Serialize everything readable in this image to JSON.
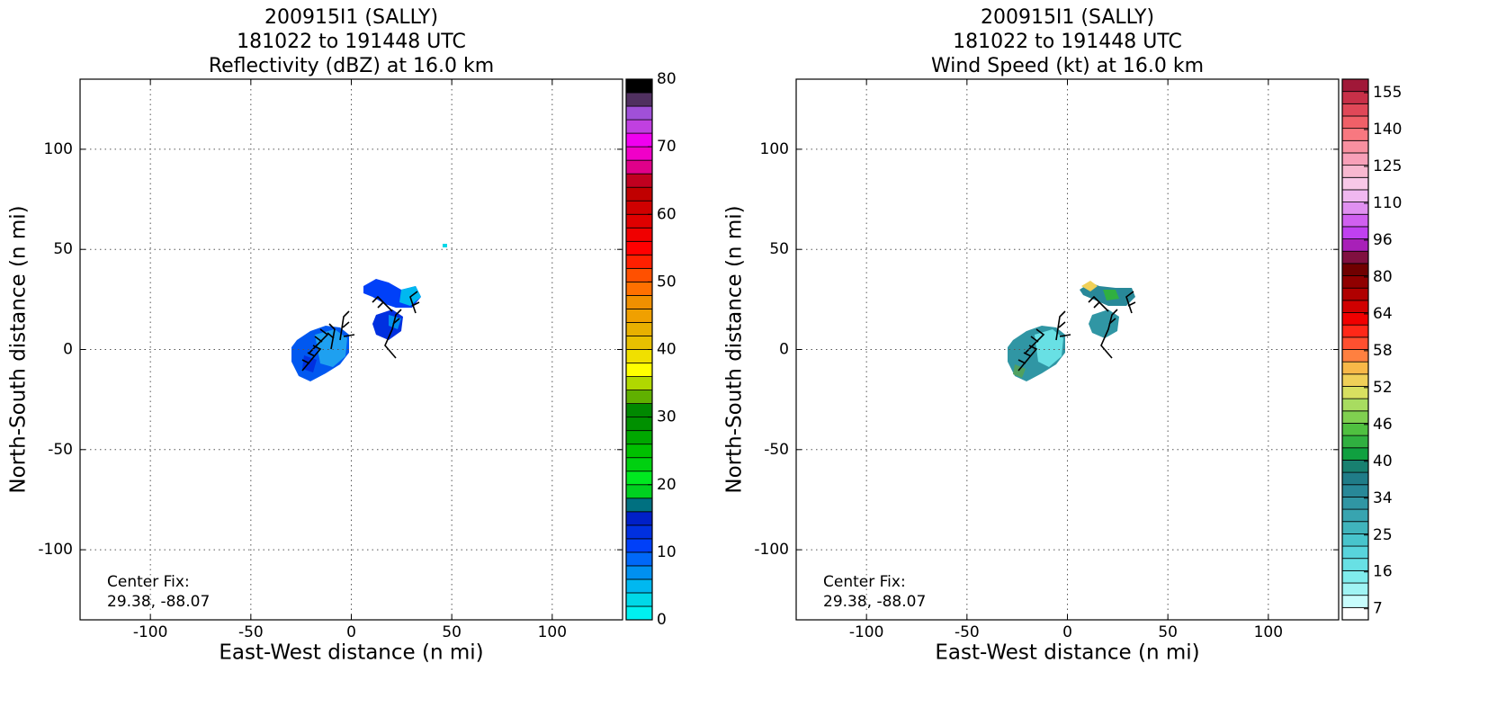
{
  "charts": [
    {
      "chart_data": {
        "type": "radar-field",
        "title": [
          "200915I1 (SALLY)",
          "181022 to 191448 UTC",
          "Reflectivity (dBZ) at 16.0 km"
        ],
        "x_label": "East-West distance (n mi)",
        "y_label": "North-South distance (n mi)",
        "xlim": [
          -135,
          135
        ],
        "ylim": [
          -135,
          135
        ],
        "xticks": [
          -100,
          -50,
          0,
          50,
          100
        ],
        "yticks": [
          -100,
          -50,
          0,
          50,
          100
        ],
        "grid": true,
        "annotation": [
          "Center Fix:",
          "29.38, -88.07"
        ],
        "colorbar": {
          "scale": "linear",
          "clim": [
            0,
            80
          ],
          "ticks": [
            0,
            10,
            20,
            30,
            40,
            50,
            60,
            70,
            80
          ],
          "colors": [
            "#00f0f0",
            "#00d8e8",
            "#00b8f0",
            "#0090f0",
            "#0068f8",
            "#0040f8",
            "#0030e0",
            "#0020c8",
            "#007080",
            "#00d020",
            "#00e820",
            "#00d010",
            "#00c000",
            "#00a800",
            "#009000",
            "#008800",
            "#60b000",
            "#b0d800",
            "#ffff00",
            "#f0e000",
            "#e8c000",
            "#e8b000",
            "#f0a000",
            "#f09000",
            "#ff7000",
            "#ff5000",
            "#ff2000",
            "#ff0000",
            "#f00000",
            "#e00000",
            "#d00000",
            "#c00000",
            "#c00020",
            "#e0008a",
            "#f000c8",
            "#f000f0",
            "#c040e0",
            "#a050d8",
            "#503060",
            "#000000"
          ]
        }
      }
    },
    {
      "chart_data": {
        "type": "radar-field",
        "title": [
          "200915I1 (SALLY)",
          "181022 to 191448 UTC",
          "Wind Speed (kt) at 16.0 km"
        ],
        "x_label": "East-West distance (n mi)",
        "y_label": "North-South distance (n mi)",
        "xlim": [
          -135,
          135
        ],
        "ylim": [
          -135,
          135
        ],
        "xticks": [
          -100,
          -50,
          0,
          50,
          100
        ],
        "yticks": [
          -100,
          -50,
          0,
          50,
          100
        ],
        "grid": true,
        "annotation": [
          "Center Fix:",
          "29.38, -88.07"
        ],
        "colorbar": {
          "scale": "categorical",
          "ticks": [
            7,
            16,
            25,
            34,
            40,
            46,
            52,
            58,
            64,
            80,
            96,
            110,
            125,
            140,
            155
          ],
          "colors": [
            "#ffffff",
            "#c8fcfc",
            "#a0f4f4",
            "#80ecec",
            "#68e0e4",
            "#58d4dc",
            "#48c4cc",
            "#40b4bc",
            "#38a4b0",
            "#3096a4",
            "#288898",
            "#207c88",
            "#188070",
            "#10a040",
            "#30b040",
            "#50c040",
            "#80d050",
            "#a8dc60",
            "#d8e060",
            "#f0d058",
            "#f8b848",
            "#ff8040",
            "#ff5030",
            "#ff2818",
            "#f00000",
            "#d00000",
            "#b00000",
            "#900000",
            "#700000",
            "#801040",
            "#a820b8",
            "#c040f0",
            "#d060f0",
            "#e090f0",
            "#f0b8f0",
            "#f8c8e8",
            "#f8b8d0",
            "#f8a0b8",
            "#f890a0",
            "#f87880",
            "#f06068",
            "#e04858",
            "#c83048",
            "#a01838"
          ]
        }
      }
    }
  ]
}
